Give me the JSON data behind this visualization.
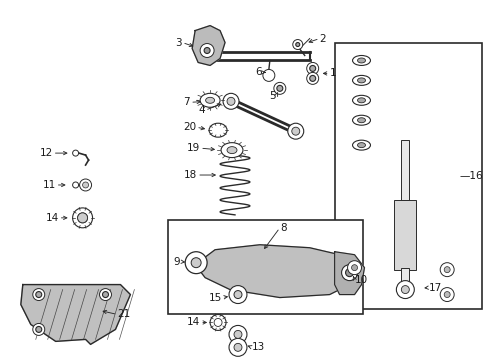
{
  "bg_color": "#ffffff",
  "line_color": "#2a2a2a",
  "text_color": "#1a1a1a",
  "fig_width": 4.89,
  "fig_height": 3.6,
  "dpi": 100
}
